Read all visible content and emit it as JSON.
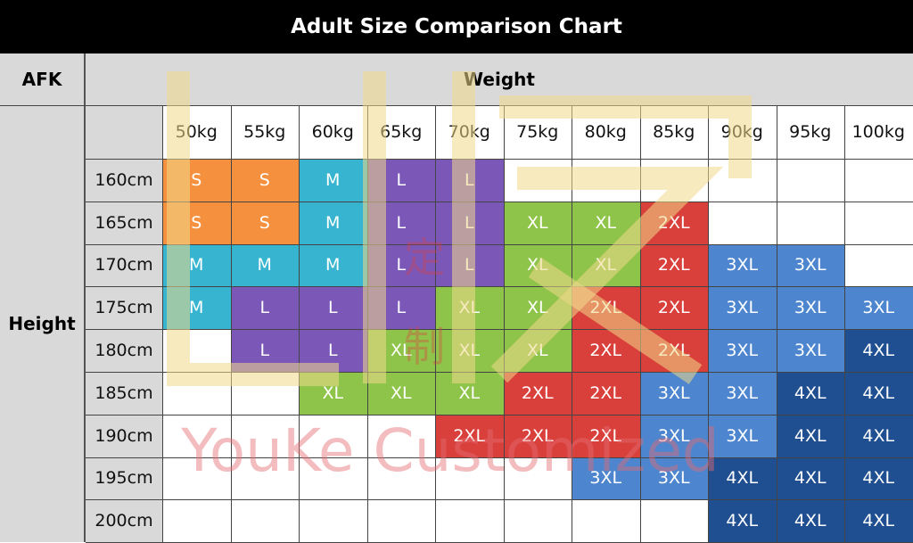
{
  "title": "Adult Size Comparison Chart",
  "afk_label": "AFK",
  "weight_label": "Weight",
  "height_label": "Height",
  "weights": [
    "50kg",
    "55kg",
    "60kg",
    "65kg",
    "70kg",
    "75kg",
    "80kg",
    "85kg",
    "90kg",
    "95kg",
    "100kg"
  ],
  "heights": [
    "160cm",
    "165cm",
    "170cm",
    "175cm",
    "180cm",
    "185cm",
    "190cm",
    "195cm",
    "200cm"
  ],
  "size_colors": {
    "S": "#f5913e",
    "M": "#36b4d0",
    "L": "#7b57b8",
    "XL": "#8fc44a",
    "2XL": "#d9403b",
    "3XL": "#4d86cf",
    "4XL": "#1f4f91"
  },
  "grid": [
    [
      "S",
      "S",
      "M",
      "L",
      "L",
      "",
      "",
      "",
      "",
      "",
      ""
    ],
    [
      "S",
      "S",
      "M",
      "L",
      "L",
      "XL",
      "XL",
      "2XL",
      "",
      "",
      ""
    ],
    [
      "M",
      "M",
      "M",
      "L",
      "L",
      "XL",
      "XL",
      "2XL",
      "3XL",
      "3XL",
      ""
    ],
    [
      "M",
      "L",
      "L",
      "L",
      "XL",
      "XL",
      "2XL",
      "2XL",
      "3XL",
      "3XL",
      "3XL"
    ],
    [
      "",
      "L",
      "L",
      "XL",
      "XL",
      "XL",
      "2XL",
      "2XL",
      "3XL",
      "3XL",
      "4XL"
    ],
    [
      "",
      "",
      "XL",
      "XL",
      "XL",
      "2XL",
      "2XL",
      "3XL",
      "3XL",
      "4XL",
      "4XL"
    ],
    [
      "",
      "",
      "",
      "",
      "2XL",
      "2XL",
      "2XL",
      "3XL",
      "3XL",
      "4XL",
      "4XL"
    ],
    [
      "",
      "",
      "",
      "",
      "",
      "",
      "3XL",
      "3XL",
      "4XL",
      "4XL",
      "4XL"
    ],
    [
      "",
      "",
      "",
      "",
      "",
      "",
      "",
      "",
      "4XL",
      "4XL",
      "4XL"
    ]
  ],
  "watermark_text": "YouKe Customized",
  "watermark_glyphs": [
    "定",
    "制"
  ]
}
